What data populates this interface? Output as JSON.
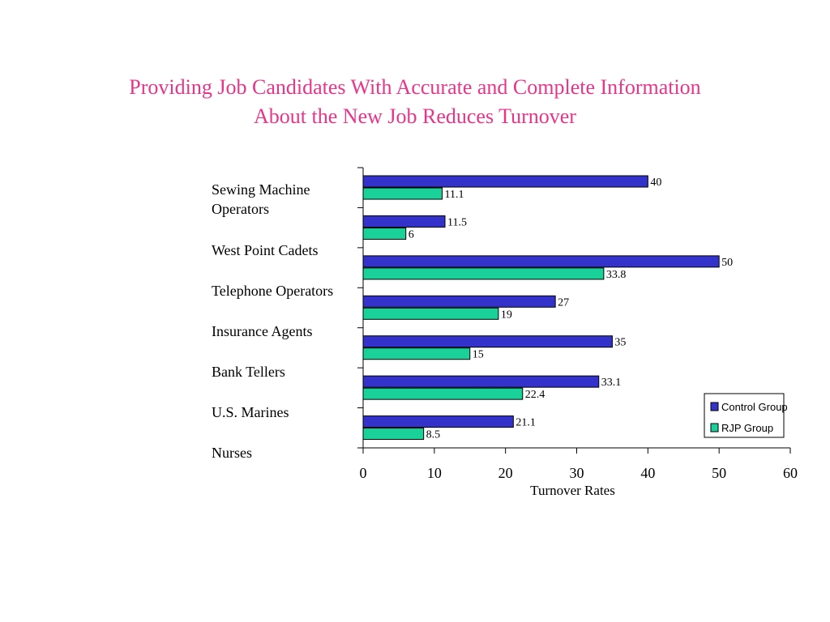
{
  "slide": {
    "title_line1": "Providing Job Candidates With Accurate and Complete Information",
    "title_line2": "About the New Job Reduces Turnover"
  },
  "chart_data": {
    "type": "bar",
    "orientation": "horizontal",
    "categories": [
      "Sewing Machine\nOperators",
      "West Point Cadets",
      "Telephone Operators",
      "Insurance Agents",
      "Bank Tellers",
      "U.S. Marines",
      "Nurses"
    ],
    "series": [
      {
        "name": "Control Group",
        "color": "#3333cc",
        "values": [
          40,
          11.5,
          50,
          27,
          35,
          33.1,
          21.1
        ]
      },
      {
        "name": "RJP Group",
        "color": "#1ad19a",
        "values": [
          11.1,
          6,
          33.8,
          19,
          15,
          22.4,
          8.5
        ]
      }
    ],
    "data_labels": [
      [
        "40",
        "11.5",
        "50",
        "27",
        "35",
        "33.1",
        "21.1"
      ],
      [
        "11.1",
        "6",
        "33.8",
        "19",
        "15",
        "22.4",
        "8.5"
      ]
    ],
    "xlabel": "Turnover Rates",
    "xlim": [
      0,
      60
    ],
    "xticks": [
      "0",
      "10",
      "20",
      "30",
      "40",
      "50",
      "60"
    ],
    "legend_position": "bottom-right",
    "grid": false
  }
}
